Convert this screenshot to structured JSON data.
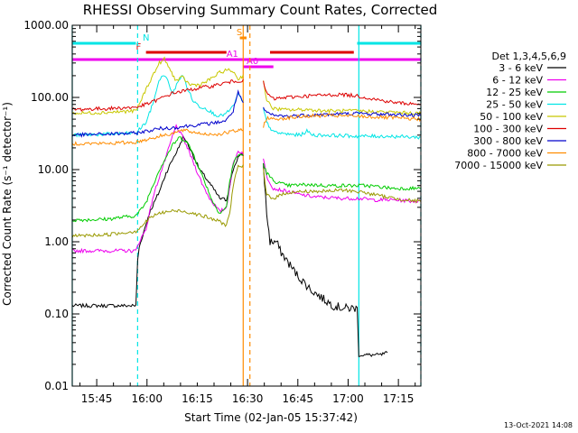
{
  "chart_data": {
    "type": "line",
    "title": "RHESSI Observing Summary Count Rates, Corrected",
    "xlabel": "Start Time (02-Jan-05 15:37:42)",
    "ylabel": "Corrected Count Rate (s⁻¹ detector⁻¹)",
    "yscale": "log",
    "ylim": [
      0.01,
      1000
    ],
    "xlim_minutes": [
      0,
      104
    ],
    "x_units": "minutes after 15:37:42",
    "y_ticks": [
      "0.01",
      "0.10",
      "1.00",
      "10.00",
      "100.00",
      "1000.00"
    ],
    "x_ticks": [
      "15:45",
      "16:00",
      "16:15",
      "16:30",
      "16:45",
      "17:00",
      "17:15"
    ],
    "grid": false,
    "legend_position": "right",
    "legend_title": "Det 1,3,4,5,6,9",
    "timestamp": "13-Oct-2021 14:08",
    "flags": {
      "N": {
        "label": "N",
        "color": "#00e5e5",
        "intervals": [
          [
            0,
            19
          ],
          [
            85,
            104
          ]
        ]
      },
      "F": {
        "label": "F",
        "color": "#dd0000",
        "intervals": [
          [
            22,
            46
          ],
          [
            59,
            84
          ]
        ]
      },
      "S": {
        "label": "S",
        "color": "#ff8c00",
        "intervals": [
          [
            50,
            52
          ]
        ]
      },
      "A0": {
        "label": "A0",
        "color": "#ee00ee",
        "intervals": [
          [
            51,
            60
          ]
        ]
      },
      "A1": {
        "label": "A1",
        "color": "#ee00ee",
        "intervals": [
          [
            0,
            104
          ]
        ]
      }
    },
    "vlines": [
      {
        "x": 0,
        "color": "#00e5e5",
        "style": "solid"
      },
      {
        "x": 19.5,
        "color": "#00e5e5",
        "style": "dashed"
      },
      {
        "x": 85.5,
        "color": "#00e5e5",
        "style": "solid"
      },
      {
        "x": 104,
        "color": "#00e5e5",
        "style": "dashed"
      },
      {
        "x": 51,
        "color": "#ff8c00",
        "style": "solid"
      },
      {
        "x": 53,
        "color": "#ff8c00",
        "style": "dashed"
      }
    ],
    "gap": [
      51,
      57
    ],
    "series": [
      {
        "name": "3 - 6 keV",
        "color": "#000000",
        "points": [
          [
            0,
            0.13
          ],
          [
            19,
            0.13
          ],
          [
            19.5,
            0.55
          ],
          [
            20,
            0.85
          ],
          [
            23,
            2.5
          ],
          [
            26,
            5
          ],
          [
            28,
            9
          ],
          [
            30,
            14
          ],
          [
            31.5,
            19
          ],
          [
            33,
            28
          ],
          [
            34,
            25
          ],
          [
            36,
            16
          ],
          [
            38,
            10
          ],
          [
            40,
            7.5
          ],
          [
            42,
            5.5
          ],
          [
            44,
            4
          ],
          [
            46,
            3.8
          ],
          [
            47,
            6
          ],
          [
            48,
            10
          ],
          [
            49.5,
            15
          ],
          [
            51,
            16
          ],
          [
            57,
            12
          ],
          [
            58,
            2.5
          ],
          [
            59,
            1
          ],
          [
            61,
            1
          ],
          [
            62,
            0.75
          ],
          [
            64,
            0.55
          ],
          [
            67,
            0.35
          ],
          [
            71,
            0.22
          ],
          [
            75,
            0.16
          ],
          [
            78,
            0.13
          ],
          [
            81,
            0.12
          ],
          [
            84,
            0.12
          ],
          [
            85,
            0.12
          ],
          [
            85.5,
            0.027
          ],
          [
            92,
            0.027
          ],
          [
            94,
            0.029
          ]
        ]
      },
      {
        "name": "6 - 12 keV",
        "color": "#ee00ee",
        "points": [
          [
            0,
            0.75
          ],
          [
            19,
            0.75
          ],
          [
            20,
            1.0
          ],
          [
            22,
            1.5
          ],
          [
            24,
            4
          ],
          [
            26,
            8
          ],
          [
            28,
            15
          ],
          [
            30,
            30
          ],
          [
            31,
            40
          ],
          [
            33,
            28
          ],
          [
            35,
            17
          ],
          [
            37,
            10
          ],
          [
            39,
            6
          ],
          [
            41,
            4
          ],
          [
            43,
            3
          ],
          [
            44,
            2.6
          ],
          [
            46,
            3
          ],
          [
            47,
            6
          ],
          [
            48,
            12
          ],
          [
            49.5,
            18
          ],
          [
            51,
            17
          ],
          [
            57,
            14
          ],
          [
            58,
            8
          ],
          [
            60,
            5.5
          ],
          [
            64,
            5
          ],
          [
            68,
            4.5
          ],
          [
            72,
            4.2
          ],
          [
            80,
            4
          ],
          [
            85,
            4
          ],
          [
            90,
            3.8
          ],
          [
            96,
            3.8
          ],
          [
            104,
            3.6
          ]
        ]
      },
      {
        "name": "12 - 25 keV",
        "color": "#00cc00",
        "points": [
          [
            0,
            2
          ],
          [
            10,
            2.05
          ],
          [
            19,
            2.3
          ],
          [
            20,
            2.6
          ],
          [
            22,
            3.5
          ],
          [
            24,
            6
          ],
          [
            26,
            10
          ],
          [
            28,
            15
          ],
          [
            30,
            22
          ],
          [
            32,
            28
          ],
          [
            34,
            25
          ],
          [
            36,
            17
          ],
          [
            38,
            10
          ],
          [
            40,
            6
          ],
          [
            42,
            3.5
          ],
          [
            44,
            2.5
          ],
          [
            46,
            3
          ],
          [
            47,
            7
          ],
          [
            48,
            12
          ],
          [
            49.5,
            16
          ],
          [
            51,
            16
          ],
          [
            57,
            12
          ],
          [
            58,
            9
          ],
          [
            60,
            7
          ],
          [
            64,
            6
          ],
          [
            70,
            6.2
          ],
          [
            76,
            6
          ],
          [
            82,
            6
          ],
          [
            88,
            6
          ],
          [
            96,
            5.5
          ],
          [
            104,
            5.5
          ]
        ]
      },
      {
        "name": "25 - 50 keV",
        "color": "#00e5e5",
        "points": [
          [
            0,
            30
          ],
          [
            10,
            31
          ],
          [
            19,
            32
          ],
          [
            20,
            36
          ],
          [
            22,
            45
          ],
          [
            24,
            80
          ],
          [
            25.5,
            150
          ],
          [
            27,
            210
          ],
          [
            28.5,
            170
          ],
          [
            30,
            110
          ],
          [
            31.5,
            170
          ],
          [
            33,
            200
          ],
          [
            34.5,
            130
          ],
          [
            36,
            90
          ],
          [
            38,
            75
          ],
          [
            40,
            70
          ],
          [
            42,
            60
          ],
          [
            44,
            55
          ],
          [
            46,
            60
          ],
          [
            48,
            75
          ],
          [
            49.5,
            110
          ],
          [
            51,
            85
          ],
          [
            57,
            70
          ],
          [
            58,
            45
          ],
          [
            60,
            33
          ],
          [
            64,
            31
          ],
          [
            68,
            30
          ],
          [
            70,
            34
          ],
          [
            72,
            30
          ],
          [
            76,
            30
          ],
          [
            85,
            29
          ],
          [
            94,
            29
          ],
          [
            104,
            28
          ]
        ]
      },
      {
        "name": "50 - 100 keV",
        "color": "#c8c800",
        "points": [
          [
            0,
            60
          ],
          [
            10,
            62
          ],
          [
            19,
            65
          ],
          [
            20,
            80
          ],
          [
            22,
            130
          ],
          [
            24,
            200
          ],
          [
            26,
            300
          ],
          [
            27.5,
            340
          ],
          [
            29,
            250
          ],
          [
            31,
            170
          ],
          [
            33,
            190
          ],
          [
            35,
            150
          ],
          [
            38,
            150
          ],
          [
            40,
            165
          ],
          [
            42,
            190
          ],
          [
            44,
            220
          ],
          [
            46,
            240
          ],
          [
            48,
            230
          ],
          [
            49.5,
            180
          ],
          [
            51,
            200
          ],
          [
            57,
            180
          ],
          [
            58,
            90
          ],
          [
            60,
            70
          ],
          [
            64,
            67
          ],
          [
            70,
            68
          ],
          [
            76,
            65
          ],
          [
            85,
            65
          ],
          [
            96,
            62
          ],
          [
            104,
            60
          ]
        ]
      },
      {
        "name": "100 - 300 keV",
        "color": "#dd0000",
        "points": [
          [
            0,
            68
          ],
          [
            10,
            70
          ],
          [
            19,
            73
          ],
          [
            22,
            80
          ],
          [
            26,
            95
          ],
          [
            30,
            115
          ],
          [
            34,
            125
          ],
          [
            38,
            135
          ],
          [
            42,
            145
          ],
          [
            46,
            160
          ],
          [
            49,
            170
          ],
          [
            51,
            170
          ],
          [
            57,
            160
          ],
          [
            58,
            115
          ],
          [
            60,
            95
          ],
          [
            64,
            100
          ],
          [
            70,
            105
          ],
          [
            76,
            108
          ],
          [
            80,
            110
          ],
          [
            85,
            105
          ],
          [
            90,
            95
          ],
          [
            96,
            85
          ],
          [
            104,
            80
          ]
        ]
      },
      {
        "name": "300 - 800 keV",
        "color": "#0000cc",
        "points": [
          [
            0,
            30
          ],
          [
            10,
            31
          ],
          [
            19,
            32
          ],
          [
            22,
            34
          ],
          [
            26,
            37
          ],
          [
            30,
            38
          ],
          [
            34,
            40
          ],
          [
            38,
            42
          ],
          [
            42,
            44
          ],
          [
            46,
            48
          ],
          [
            48,
            65
          ],
          [
            49.5,
            120
          ],
          [
            51,
            80
          ],
          [
            57,
            70
          ],
          [
            58,
            62
          ],
          [
            60,
            56
          ],
          [
            64,
            55
          ],
          [
            70,
            57
          ],
          [
            76,
            58
          ],
          [
            85,
            60
          ],
          [
            96,
            58
          ],
          [
            104,
            56
          ]
        ]
      },
      {
        "name": "800 - 7000 keV",
        "color": "#ff8c00",
        "points": [
          [
            0,
            23
          ],
          [
            10,
            23
          ],
          [
            19,
            24
          ],
          [
            22,
            26
          ],
          [
            26,
            29
          ],
          [
            30,
            32
          ],
          [
            33,
            35
          ],
          [
            36,
            33
          ],
          [
            40,
            31
          ],
          [
            44,
            31
          ],
          [
            48,
            34
          ],
          [
            51,
            35
          ],
          [
            57,
            40
          ],
          [
            58,
            52
          ],
          [
            60,
            50
          ],
          [
            64,
            52
          ],
          [
            70,
            55
          ],
          [
            76,
            56
          ],
          [
            85,
            55
          ],
          [
            96,
            52
          ],
          [
            104,
            50
          ]
        ]
      },
      {
        "name": "7000 - 15000 keV",
        "color": "#999900",
        "points": [
          [
            0,
            1.2
          ],
          [
            10,
            1.25
          ],
          [
            19,
            1.4
          ],
          [
            21,
            1.7
          ],
          [
            23,
            2.1
          ],
          [
            25,
            2.4
          ],
          [
            28,
            2.6
          ],
          [
            32,
            2.7
          ],
          [
            36,
            2.5
          ],
          [
            40,
            2.2
          ],
          [
            44,
            1.9
          ],
          [
            46,
            1.7
          ],
          [
            47,
            2.5
          ],
          [
            48,
            6
          ],
          [
            49.5,
            11
          ],
          [
            51,
            11
          ],
          [
            57,
            10
          ],
          [
            58,
            4.5
          ],
          [
            60,
            4
          ],
          [
            64,
            4.8
          ],
          [
            70,
            5
          ],
          [
            76,
            5
          ],
          [
            80,
            5.2
          ],
          [
            85,
            5
          ],
          [
            96,
            4
          ],
          [
            104,
            3.6
          ]
        ]
      }
    ]
  }
}
